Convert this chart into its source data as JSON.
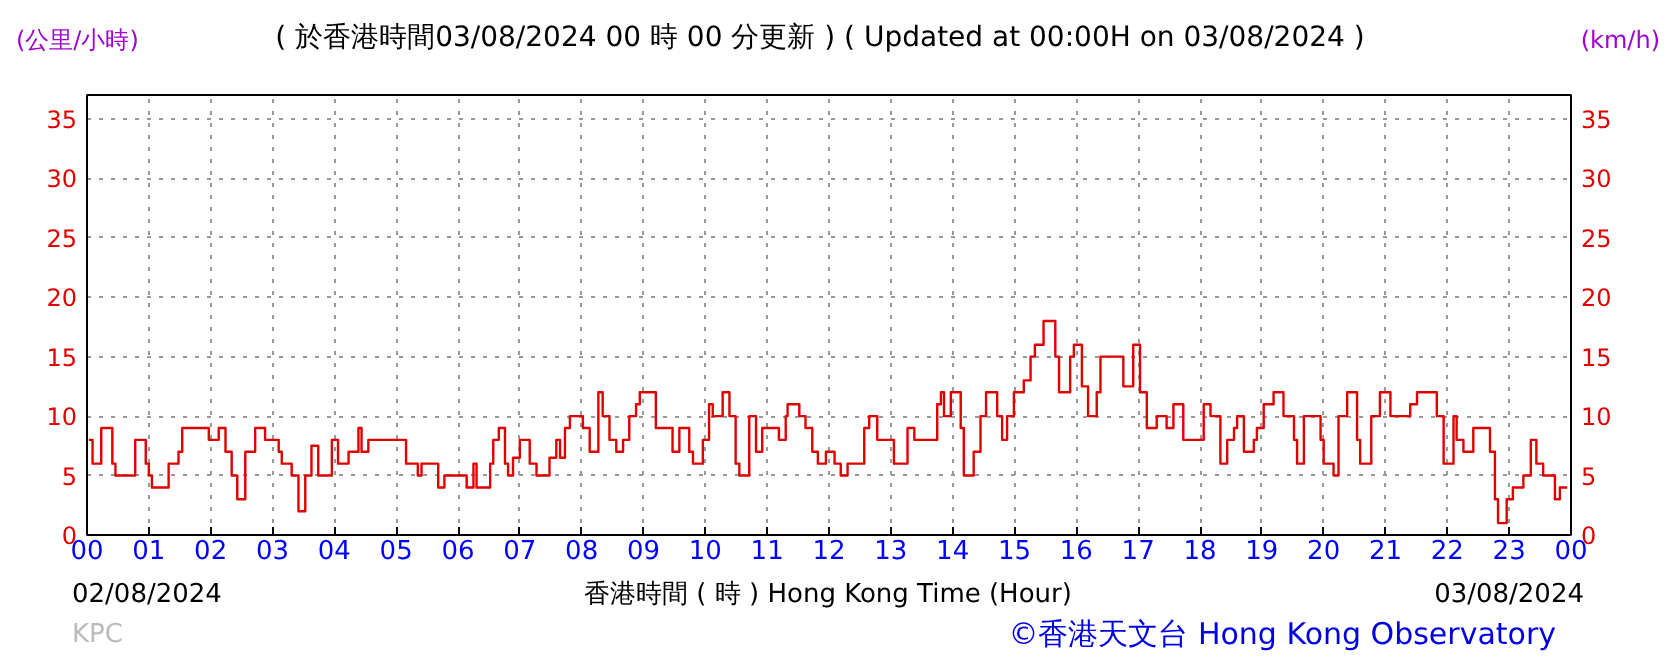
{
  "chart_data": {
    "type": "step",
    "title": "( 於香港時間03/08/2024 00 時 00 分更新 ) ( Updated at 00:00H on 03/08/2024 )",
    "xlabel": "香港時間 ( 時 ) Hong Kong Time (Hour)",
    "ylabel": "(公里/小時)",
    "y2label": "(km/h)",
    "annotations": [
      "02/08/2024",
      "03/08/2024",
      "KPC",
      "©香港天文台 Hong Kong Observatory"
    ],
    "xlim": [
      0,
      24
    ],
    "xticks": [
      {
        "value": 0,
        "label": "00"
      },
      {
        "value": 1,
        "label": "01"
      },
      {
        "value": 2,
        "label": "02"
      },
      {
        "value": 3,
        "label": "03"
      },
      {
        "value": 4,
        "label": "04"
      },
      {
        "value": 5,
        "label": "05"
      },
      {
        "value": 6,
        "label": "06"
      },
      {
        "value": 7,
        "label": "07"
      },
      {
        "value": 8,
        "label": "08"
      },
      {
        "value": 9,
        "label": "09"
      },
      {
        "value": 10,
        "label": "10"
      },
      {
        "value": 11,
        "label": "11"
      },
      {
        "value": 12,
        "label": "12"
      },
      {
        "value": 13,
        "label": "13"
      },
      {
        "value": 14,
        "label": "14"
      },
      {
        "value": 15,
        "label": "15"
      },
      {
        "value": 16,
        "label": "16"
      },
      {
        "value": 17,
        "label": "17"
      },
      {
        "value": 18,
        "label": "18"
      },
      {
        "value": 19,
        "label": "19"
      },
      {
        "value": 20,
        "label": "20"
      },
      {
        "value": 21,
        "label": "21"
      },
      {
        "value": 22,
        "label": "22"
      },
      {
        "value": 23,
        "label": "23"
      },
      {
        "value": 24,
        "label": "00"
      }
    ],
    "ylim": [
      0,
      37
    ],
    "yticks": [
      0,
      5,
      10,
      15,
      20,
      25,
      30,
      35
    ],
    "y2lim": [
      0,
      37
    ],
    "y2ticks": [
      0,
      5,
      10,
      15,
      20,
      25,
      30,
      35
    ],
    "grid": true,
    "line_style": "solid",
    "marker": "none",
    "series": [
      {
        "color": "#e00000",
        "x": [
          0.03,
          0.09,
          0.23,
          0.35,
          0.41,
          0.46,
          0.68,
          0.78,
          0.89,
          0.95,
          1.0,
          1.05,
          1.22,
          1.32,
          1.48,
          1.54,
          1.86,
          1.97,
          2.08,
          2.13,
          2.24,
          2.34,
          2.43,
          2.56,
          2.72,
          2.88,
          3.04,
          3.1,
          3.15,
          3.31,
          3.42,
          3.53,
          3.63,
          3.74,
          3.96,
          4.06,
          4.23,
          4.39,
          4.44,
          4.55,
          5.03,
          5.16,
          5.3,
          5.35,
          5.41,
          5.62,
          5.68,
          5.78,
          5.95,
          6.09,
          6.14,
          6.25,
          6.3,
          6.46,
          6.52,
          6.57,
          6.66,
          6.76,
          6.81,
          6.89,
          7.0,
          7.11,
          7.16,
          7.27,
          7.43,
          7.48,
          7.59,
          7.65,
          7.73,
          7.81,
          8.02,
          8.13,
          8.27,
          8.34,
          8.45,
          8.56,
          8.67,
          8.77,
          8.88,
          8.94,
          9.1,
          9.2,
          9.37,
          9.47,
          9.58,
          9.74,
          9.8,
          9.9,
          9.96,
          10.06,
          10.12,
          10.28,
          10.39,
          10.49,
          10.55,
          10.71,
          10.82,
          10.92,
          11.19,
          11.3,
          11.33,
          11.52,
          11.62,
          11.73,
          11.82,
          11.95,
          12.09,
          12.19,
          12.3,
          12.46,
          12.57,
          12.65,
          12.78,
          12.95,
          13.05,
          13.16,
          13.27,
          13.38,
          13.65,
          13.75,
          13.81,
          13.86,
          13.97,
          14.02,
          14.13,
          14.18,
          14.24,
          14.34,
          14.45,
          14.54,
          14.67,
          14.72,
          14.8,
          14.88,
          14.99,
          15.1,
          15.15,
          15.26,
          15.33,
          15.47,
          15.58,
          15.66,
          15.72,
          15.85,
          15.9,
          15.96,
          16.09,
          16.19,
          16.25,
          16.33,
          16.39,
          16.55,
          16.76,
          16.92,
          17.03,
          17.14,
          17.3,
          17.41,
          17.46,
          17.57,
          17.73,
          18.0,
          18.06,
          18.17,
          18.33,
          18.44,
          18.55,
          18.6,
          18.71,
          18.87,
          18.92,
          19.03,
          19.19,
          19.25,
          19.35,
          19.52,
          19.57,
          19.68,
          19.84,
          19.95,
          20.0,
          20.11,
          20.16,
          20.24,
          20.38,
          20.43,
          20.54,
          20.59,
          20.67,
          20.77,
          20.91,
          20.97,
          21.08,
          21.29,
          21.4,
          21.51,
          21.72,
          21.83,
          21.94,
          21.99,
          22.1,
          22.15,
          22.26,
          22.42,
          22.58,
          22.69,
          22.77,
          22.82,
          22.9,
          22.96,
          23.06,
          23.23,
          23.35,
          23.44,
          23.55,
          23.66,
          23.74,
          23.82,
          23.94
        ],
        "values": [
          8,
          6,
          9,
          9,
          6,
          5,
          5,
          8,
          8,
          6,
          5,
          4,
          4,
          6,
          7,
          9,
          9,
          8,
          8,
          9,
          7,
          5,
          3,
          7,
          9,
          8,
          8,
          7,
          6,
          5,
          2,
          5,
          7.5,
          5,
          8,
          6,
          7,
          9,
          7,
          8,
          8,
          6,
          6,
          5,
          6,
          6,
          4,
          5,
          5,
          5,
          4,
          6,
          4,
          4,
          6,
          8,
          9,
          6,
          5,
          6.5,
          8,
          8,
          6,
          5,
          5,
          6.5,
          8,
          6.5,
          9,
          10,
          9,
          7,
          12,
          10,
          8,
          7,
          8,
          10,
          11,
          12,
          12,
          9,
          9,
          7,
          9,
          7,
          6,
          6,
          8,
          11,
          10,
          12,
          10,
          6,
          5,
          10,
          7,
          9,
          8,
          10,
          11,
          10,
          9,
          7,
          6,
          7,
          6,
          5,
          6,
          6,
          9,
          10,
          8,
          8,
          6,
          6,
          9,
          8,
          8,
          11,
          12,
          10,
          12,
          12,
          9,
          5,
          5,
          7,
          10,
          12,
          12,
          10,
          8,
          10,
          12,
          12,
          13,
          15,
          16,
          18,
          18,
          15,
          12,
          12,
          15,
          16,
          12.5,
          10,
          10,
          12,
          15,
          15,
          12.5,
          16,
          12,
          9,
          10,
          10,
          9,
          11,
          8,
          8,
          11,
          10,
          6,
          8,
          9,
          10,
          7,
          8,
          9,
          11,
          12,
          12,
          10,
          8,
          6,
          10,
          10,
          8,
          6,
          6,
          5,
          10,
          12,
          12,
          8,
          6,
          6,
          10,
          12,
          12,
          10,
          10,
          11,
          12,
          12,
          10,
          6,
          6,
          10,
          8,
          7,
          9,
          9,
          7,
          3,
          1,
          1,
          3,
          4,
          5,
          8,
          6,
          5,
          5,
          3,
          4,
          4
        ]
      }
    ]
  }
}
